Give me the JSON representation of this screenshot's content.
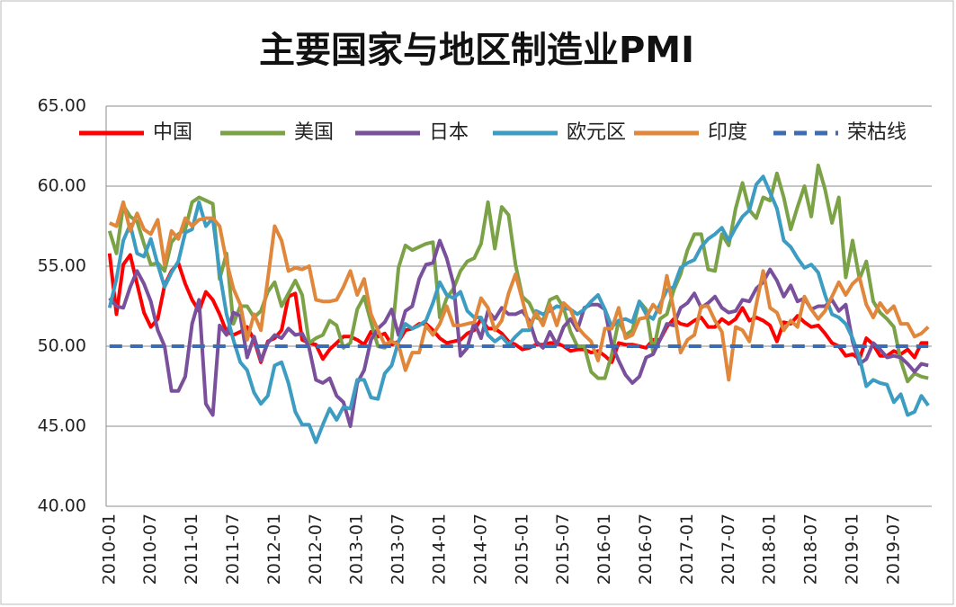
{
  "chart_data": {
    "type": "line",
    "title": "主要国家与地区制造业PMI",
    "categories": [
      "2010-01",
      null,
      null,
      null,
      null,
      null,
      "2010-07",
      null,
      null,
      null,
      null,
      null,
      "2011-01",
      null,
      null,
      null,
      null,
      null,
      "2011-07",
      null,
      null,
      null,
      null,
      null,
      "2012-01",
      null,
      null,
      null,
      null,
      null,
      "2012-07",
      null,
      null,
      null,
      null,
      null,
      "2013-01",
      null,
      null,
      null,
      null,
      null,
      "2013-07",
      null,
      null,
      null,
      null,
      null,
      "2014-01",
      null,
      null,
      null,
      null,
      null,
      "2014-07",
      null,
      null,
      null,
      null,
      null,
      "2015-01",
      null,
      null,
      null,
      null,
      null,
      "2015-07",
      null,
      null,
      null,
      null,
      null,
      "2016-01",
      null,
      null,
      null,
      null,
      null,
      "2016-07",
      null,
      null,
      null,
      null,
      null,
      "2017-01",
      null,
      null,
      null,
      null,
      null,
      "2017-07",
      null,
      null,
      null,
      null,
      null,
      "2018-01",
      null,
      null,
      null,
      null,
      null,
      "2018-07",
      null,
      null,
      null,
      null,
      null,
      "2019-01",
      null,
      null,
      null,
      null,
      null,
      "2019-07",
      null,
      null,
      null,
      null,
      null
    ],
    "series": [
      {
        "name": "中国",
        "color": "#ff0000",
        "style": "solid",
        "values": [
          55.8,
          52.0,
          55.1,
          55.7,
          53.9,
          52.1,
          51.2,
          51.7,
          53.8,
          54.7,
          55.2,
          53.9,
          52.9,
          52.2,
          53.4,
          52.9,
          52.0,
          50.9,
          50.7,
          50.9,
          51.2,
          50.4,
          49.0,
          50.3,
          50.5,
          51.0,
          53.1,
          53.3,
          50.4,
          50.2,
          50.1,
          49.2,
          49.8,
          50.2,
          50.6,
          50.6,
          50.4,
          50.1,
          50.9,
          50.6,
          50.8,
          50.1,
          50.3,
          51.0,
          51.1,
          51.4,
          51.4,
          51.0,
          50.5,
          50.2,
          50.3,
          50.4,
          50.8,
          51.0,
          51.7,
          51.1,
          51.1,
          50.8,
          50.3,
          50.1,
          49.8,
          49.9,
          50.1,
          50.1,
          50.2,
          50.2,
          50.0,
          49.7,
          49.8,
          49.8,
          49.6,
          49.7,
          49.4,
          49.0,
          50.2,
          50.1,
          50.1,
          50.0,
          49.9,
          50.4,
          50.4,
          51.2,
          51.7,
          51.4,
          51.3,
          51.6,
          51.8,
          51.2,
          51.2,
          51.7,
          51.4,
          51.7,
          52.4,
          51.6,
          51.8,
          51.6,
          51.3,
          50.3,
          51.5,
          51.4,
          51.9,
          51.5,
          51.2,
          51.3,
          50.8,
          50.2,
          50.0,
          49.4,
          49.5,
          49.2,
          50.5,
          50.1,
          49.4,
          49.4,
          49.7,
          49.5,
          49.8,
          49.3,
          50.2,
          50.2
        ]
      },
      {
        "name": "美国",
        "color": "#7ba246",
        "style": "solid",
        "values": [
          57.2,
          55.8,
          58.8,
          58.1,
          57.8,
          56.4,
          55.1,
          55.2,
          54.7,
          56.5,
          57.0,
          57.3,
          59.0,
          59.3,
          59.1,
          58.9,
          54.2,
          55.8,
          51.4,
          52.5,
          52.5,
          51.8,
          52.2,
          53.4,
          54.0,
          52.5,
          53.3,
          54.1,
          53.2,
          50.2,
          50.5,
          50.7,
          51.6,
          51.3,
          49.9,
          50.2,
          52.3,
          53.1,
          51.5,
          50.0,
          49.9,
          50.4,
          54.9,
          56.3,
          56.0,
          56.2,
          56.4,
          56.5,
          51.8,
          53.0,
          53.6,
          54.7,
          55.3,
          55.5,
          56.4,
          59.0,
          56.1,
          58.7,
          58.2,
          55.1,
          53.1,
          52.7,
          51.8,
          51.6,
          52.9,
          53.1,
          52.4,
          50.9,
          50.0,
          50.0,
          48.4,
          48.0,
          48.0,
          49.5,
          51.6,
          50.7,
          51.0,
          52.8,
          52.3,
          49.6,
          51.7,
          52.0,
          53.5,
          54.5,
          56.0,
          57.0,
          57.0,
          54.8,
          54.7,
          57.0,
          56.3,
          58.6,
          60.2,
          58.5,
          58.0,
          59.3,
          59.1,
          60.8,
          59.3,
          57.3,
          58.7,
          60.0,
          58.1,
          61.3,
          59.8,
          57.7,
          59.3,
          54.3,
          56.6,
          54.2,
          55.3,
          52.8,
          52.1,
          51.7,
          51.2,
          49.1,
          47.8,
          48.3,
          48.1,
          48.0
        ]
      },
      {
        "name": "日本",
        "color": "#7a509c",
        "style": "solid",
        "values": [
          53.0,
          52.5,
          52.4,
          53.7,
          54.7,
          53.9,
          52.8,
          51.0,
          50.0,
          47.2,
          47.2,
          48.1,
          51.4,
          52.9,
          46.4,
          45.7,
          51.3,
          50.7,
          52.1,
          51.9,
          49.3,
          50.6,
          49.1,
          50.2,
          50.7,
          50.5,
          51.1,
          50.7,
          50.8,
          49.9,
          47.9,
          47.7,
          48.0,
          46.9,
          46.5,
          45.0,
          47.7,
          48.5,
          50.4,
          51.1,
          51.5,
          52.3,
          50.7,
          52.2,
          52.5,
          54.2,
          55.1,
          55.2,
          56.6,
          55.5,
          53.9,
          49.4,
          49.9,
          51.5,
          50.5,
          52.2,
          51.7,
          52.4,
          52.0,
          52.0,
          52.2,
          51.6,
          50.3,
          49.9,
          50.9,
          50.1,
          51.2,
          51.7,
          51.0,
          52.4,
          52.6,
          52.6,
          52.3,
          50.1,
          49.1,
          48.2,
          47.7,
          48.1,
          49.3,
          49.5,
          50.4,
          51.4,
          51.3,
          52.4,
          52.7,
          53.3,
          52.4,
          52.7,
          53.1,
          52.4,
          52.1,
          52.2,
          52.9,
          52.8,
          53.6,
          54.0,
          54.8,
          54.1,
          53.1,
          53.8,
          52.8,
          53.0,
          52.3,
          52.5,
          52.5,
          52.9,
          52.2,
          52.6,
          50.3,
          48.9,
          49.2,
          50.2,
          49.8,
          49.3,
          49.4,
          49.3,
          48.9,
          48.4,
          48.9,
          48.8
        ]
      },
      {
        "name": "欧元区",
        "color": "#3c9cc2",
        "style": "solid",
        "values": [
          52.4,
          54.2,
          56.6,
          57.6,
          55.8,
          55.6,
          56.7,
          55.1,
          53.7,
          54.6,
          55.3,
          57.1,
          57.3,
          59.0,
          57.5,
          58.0,
          54.6,
          52.0,
          50.4,
          49.0,
          48.5,
          47.1,
          46.4,
          46.9,
          48.8,
          49.0,
          47.7,
          45.9,
          45.1,
          45.1,
          44.0,
          45.1,
          46.1,
          45.4,
          46.2,
          46.1,
          47.9,
          47.9,
          46.8,
          46.7,
          48.3,
          48.8,
          50.3,
          51.4,
          51.1,
          51.3,
          51.6,
          52.7,
          54.0,
          53.2,
          53.0,
          53.4,
          52.2,
          51.8,
          51.8,
          50.7,
          50.3,
          50.6,
          50.1,
          50.6,
          51.0,
          51.0,
          52.2,
          52.0,
          52.2,
          52.5,
          52.4,
          52.3,
          52.0,
          52.3,
          52.8,
          53.2,
          52.3,
          51.2,
          51.6,
          51.7,
          51.5,
          52.8,
          52.0,
          51.7,
          52.6,
          53.5,
          53.7,
          54.9,
          55.2,
          55.4,
          56.2,
          56.7,
          57.0,
          57.4,
          56.6,
          57.4,
          58.1,
          58.5,
          60.1,
          60.6,
          59.6,
          58.6,
          56.6,
          56.2,
          55.5,
          54.9,
          55.1,
          54.6,
          53.2,
          52.0,
          51.8,
          51.4,
          50.5,
          49.3,
          47.5,
          47.9,
          47.7,
          47.6,
          46.5,
          47.0,
          45.7,
          45.9,
          46.9,
          46.3
        ]
      },
      {
        "name": "印度",
        "color": "#e0873b",
        "style": "solid",
        "values": [
          57.7,
          57.5,
          59.0,
          57.2,
          58.3,
          57.3,
          57.0,
          57.9,
          55.1,
          57.2,
          56.7,
          58.0,
          57.5,
          57.9,
          58.0,
          58.0,
          57.5,
          55.3,
          53.6,
          52.6,
          50.4,
          52.0,
          51.0,
          54.2,
          57.5,
          56.6,
          54.7,
          54.9,
          54.8,
          55.0,
          52.9,
          52.8,
          52.8,
          52.9,
          53.7,
          54.7,
          53.2,
          54.2,
          52.0,
          51.0,
          50.1,
          50.3,
          50.1,
          48.5,
          49.6,
          49.6,
          51.3,
          50.7,
          51.4,
          52.5,
          51.3,
          51.3,
          51.4,
          51.5,
          53.0,
          52.4,
          51.0,
          51.6,
          53.3,
          54.5,
          52.9,
          51.2,
          52.1,
          51.3,
          52.6,
          51.3,
          52.7,
          52.3,
          51.2,
          50.7,
          50.3,
          49.1,
          51.1,
          51.1,
          52.4,
          50.5,
          50.7,
          51.7,
          51.8,
          52.6,
          52.1,
          54.4,
          52.3,
          49.6,
          50.4,
          50.7,
          52.5,
          52.5,
          51.6,
          50.9,
          47.9,
          51.2,
          51.0,
          50.3,
          52.6,
          54.7,
          52.4,
          52.1,
          51.0,
          51.6,
          51.2,
          53.1,
          52.3,
          51.7,
          52.2,
          53.1,
          54.0,
          53.2,
          53.9,
          54.3,
          52.6,
          51.8,
          52.7,
          52.1,
          52.5,
          51.4,
          51.4,
          50.6,
          50.8,
          51.2
        ]
      },
      {
        "name": "荣枯线",
        "color": "#3d6cb3",
        "style": "dashed",
        "values": [
          50,
          50,
          50,
          50,
          50,
          50,
          50,
          50,
          50,
          50,
          50,
          50,
          50,
          50,
          50,
          50,
          50,
          50,
          50,
          50,
          50,
          50,
          50,
          50,
          50,
          50,
          50,
          50,
          50,
          50,
          50,
          50,
          50,
          50,
          50,
          50,
          50,
          50,
          50,
          50,
          50,
          50,
          50,
          50,
          50,
          50,
          50,
          50,
          50,
          50,
          50,
          50,
          50,
          50,
          50,
          50,
          50,
          50,
          50,
          50,
          50,
          50,
          50,
          50,
          50,
          50,
          50,
          50,
          50,
          50,
          50,
          50,
          50,
          50,
          50,
          50,
          50,
          50,
          50,
          50,
          50,
          50,
          50,
          50,
          50,
          50,
          50,
          50,
          50,
          50,
          50,
          50,
          50,
          50,
          50,
          50,
          50,
          50,
          50,
          50,
          50,
          50,
          50,
          50,
          50,
          50,
          50,
          50,
          50,
          50,
          50,
          50,
          50,
          50,
          50,
          50,
          50,
          50,
          50,
          50
        ]
      }
    ],
    "ylim": [
      40,
      65
    ],
    "yticks": [
      {
        "value": 40,
        "label": "40.00"
      },
      {
        "value": 45,
        "label": "45.00"
      },
      {
        "value": 50,
        "label": "50.00"
      },
      {
        "value": 55,
        "label": "55.00"
      },
      {
        "value": 60,
        "label": "60.00"
      },
      {
        "value": 65,
        "label": "65.00"
      }
    ],
    "grid": true,
    "legend": "top"
  }
}
